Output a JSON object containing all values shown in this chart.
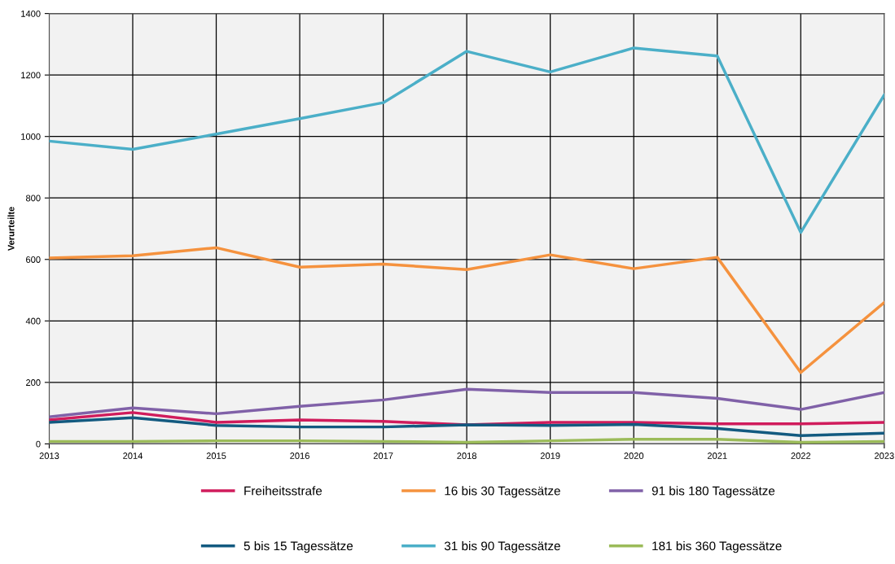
{
  "chart_data": {
    "type": "line",
    "ylabel": "Verurteilte",
    "x": [
      2013,
      2014,
      2015,
      2016,
      2017,
      2018,
      2019,
      2020,
      2021,
      2022,
      2023
    ],
    "xlim": [
      2013,
      2023
    ],
    "xticks": [
      2013,
      2014,
      2015,
      2016,
      2017,
      2018,
      2019,
      2020,
      2021,
      2022,
      2023
    ],
    "ylim": [
      0,
      1400
    ],
    "yticks": [
      0,
      200,
      400,
      600,
      800,
      1000,
      1200,
      1400
    ],
    "grid": true,
    "legend": "bottom",
    "marker": "none",
    "line_style": "solid",
    "series": [
      {
        "name": "Freiheitsstrafe",
        "color": "#d01c5c",
        "values": [
          78,
          102,
          70,
          78,
          73,
          62,
          70,
          70,
          65,
          65,
          70
        ]
      },
      {
        "name": "5 bis 15 Tagessätze",
        "color": "#135a80",
        "values": [
          70,
          85,
          60,
          55,
          55,
          62,
          60,
          63,
          50,
          27,
          35
        ]
      },
      {
        "name": "16 bis 30 Tagessätze",
        "color": "#f5923e",
        "values": [
          605,
          612,
          638,
          575,
          585,
          567,
          615,
          570,
          607,
          232,
          460
        ]
      },
      {
        "name": "31 bis 90 Tagessätze",
        "color": "#4bafc8",
        "values": [
          985,
          958,
          1008,
          1058,
          1110,
          1277,
          1210,
          1288,
          1262,
          688,
          1135
        ]
      },
      {
        "name": "91 bis 180 Tagessätze",
        "color": "#8061a8",
        "values": [
          88,
          117,
          98,
          122,
          143,
          178,
          167,
          167,
          148,
          112,
          167
        ]
      },
      {
        "name": "181 bis 360 Tagessätze",
        "color": "#9bbb59",
        "values": [
          8,
          8,
          10,
          10,
          8,
          5,
          10,
          15,
          15,
          5,
          8
        ]
      }
    ]
  }
}
